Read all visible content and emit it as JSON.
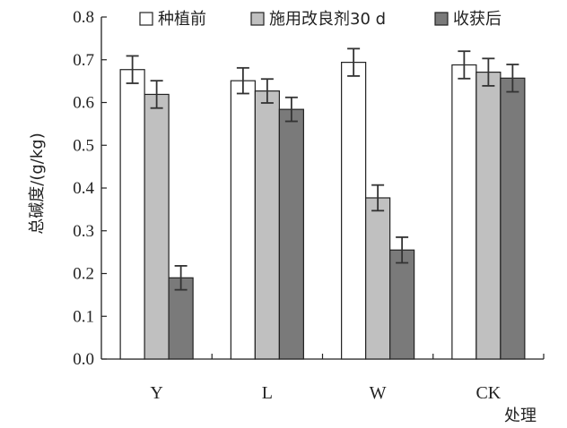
{
  "chart_data": {
    "type": "bar",
    "title": "",
    "xlabel": "处理",
    "ylabel": "总碱度/(g/kg)",
    "ylim": [
      0,
      0.8
    ],
    "yticks": [
      "0.0",
      "0.1",
      "0.2",
      "0.3",
      "0.4",
      "0.5",
      "0.6",
      "0.7",
      "0.8"
    ],
    "categories": [
      "Y",
      "L",
      "W",
      "CK"
    ],
    "legend_position": "top",
    "series": [
      {
        "name": "种植前",
        "color": "#ffffff",
        "values": [
          0.677,
          0.651,
          0.694,
          0.688
        ],
        "errors": [
          0.032,
          0.03,
          0.032,
          0.032
        ]
      },
      {
        "name": "施用改良剂30 d",
        "color": "#c0c0c0",
        "values": [
          0.619,
          0.627,
          0.377,
          0.671
        ],
        "errors": [
          0.032,
          0.028,
          0.03,
          0.032
        ]
      },
      {
        "name": "收获后",
        "color": "#7a7a7a",
        "values": [
          0.19,
          0.584,
          0.255,
          0.657
        ],
        "errors": [
          0.028,
          0.028,
          0.03,
          0.032
        ]
      }
    ]
  }
}
